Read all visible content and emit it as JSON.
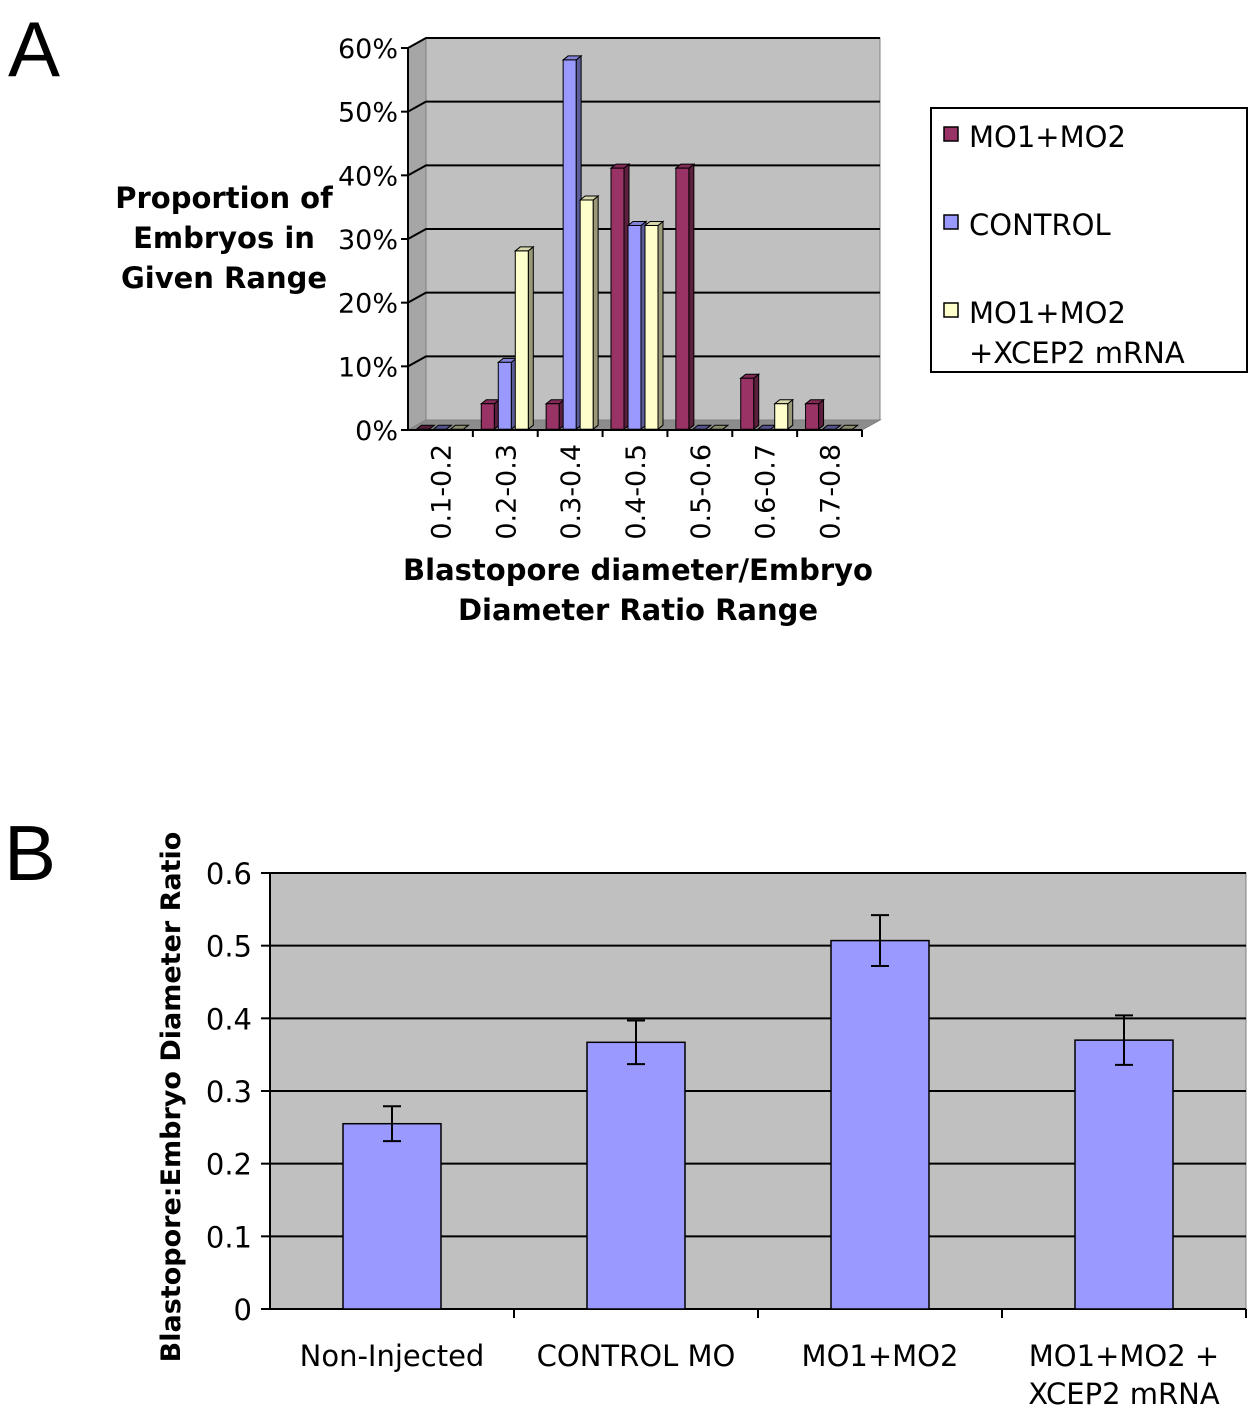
{
  "chart_data": [
    {
      "panel_label": "A",
      "type": "bar",
      "three_d": true,
      "categories": [
        "0.1-0.2",
        "0.2-0.3",
        "0.3-0.4",
        "0.4-0.5",
        "0.5-0.6",
        "0.6-0.7",
        "0.7-0.8"
      ],
      "series": [
        {
          "name": "MO1+MO2",
          "color": "#993366",
          "values": [
            0,
            4,
            4,
            41,
            41,
            8,
            4
          ]
        },
        {
          "name": "CONTROL",
          "color": "#9999FF",
          "values": [
            0,
            10.5,
            58,
            32,
            0,
            0,
            0
          ]
        },
        {
          "name": "MO1+MO2 +XCEP2 mRNA",
          "legend_lines": [
            "MO1+MO2",
            "+XCEP2 mRNA"
          ],
          "color": "#FFFFCC",
          "values": [
            0,
            28,
            36,
            32,
            0,
            4,
            0
          ]
        }
      ],
      "ylim": [
        0,
        60
      ],
      "yticks": [
        "0%",
        "10%",
        "20%",
        "30%",
        "40%",
        "50%",
        "60%"
      ],
      "ylabel_lines": [
        "Proportion of",
        "Embryos in",
        "Given Range"
      ],
      "xlabel_lines": [
        "Blastopore diameter/Embryo",
        "Diameter Ratio Range"
      ],
      "grid": true,
      "plot_background": "#C0C0C0",
      "legend_position": "right"
    },
    {
      "panel_label": "B",
      "type": "bar",
      "categories": [
        "Non-Injected",
        "CONTROL MO",
        "MO1+MO2",
        "MO1+MO2 + XCEP2 mRNA"
      ],
      "category_lines": [
        [
          "Non-Injected"
        ],
        [
          "CONTROL MO"
        ],
        [
          "MO1+MO2"
        ],
        [
          "MO1+MO2 +",
          "XCEP2 mRNA"
        ]
      ],
      "values": [
        0.255,
        0.367,
        0.507,
        0.37
      ],
      "error": [
        0.024,
        0.03,
        0.035,
        0.034
      ],
      "color": "#9999FF",
      "ylim": [
        0,
        0.6
      ],
      "yticks": [
        "0",
        "0.1",
        "0.2",
        "0.3",
        "0.4",
        "0.5",
        "0.6"
      ],
      "ylabel": "Blastopore:Embryo Diameter Ratio",
      "grid": true,
      "plot_background": "#C0C0C0"
    }
  ]
}
